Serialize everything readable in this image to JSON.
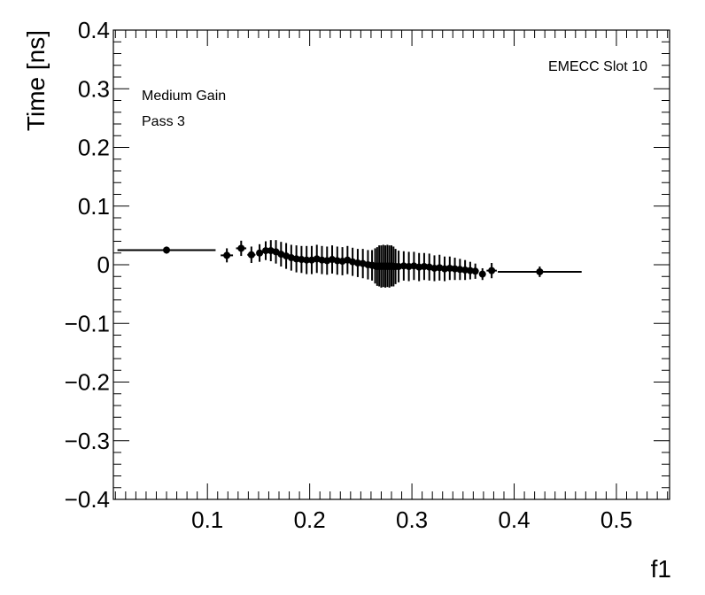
{
  "chart_data": {
    "type": "scatter",
    "xlabel": "f1",
    "ylabel": "Time [ns]",
    "xlim": [
      0.008,
      0.552
    ],
    "ylim": [
      -0.4,
      0.4
    ],
    "x_ticks": [
      0.1,
      0.2,
      0.3,
      0.4,
      0.5
    ],
    "x_tick_labels": [
      "0.1",
      "0.2",
      "0.3",
      "0.4",
      "0.5"
    ],
    "y_ticks": [
      0.4,
      0.3,
      0.2,
      0.1,
      0,
      -0.1,
      -0.2,
      -0.3,
      -0.4
    ],
    "y_tick_labels": [
      "0.4",
      "0.3",
      "0.2",
      "0.1",
      "0",
      "−0.1",
      "−0.2",
      "−0.3",
      "−0.4"
    ],
    "annotations": {
      "top_right": "EMECC Slot 10",
      "line1": "Medium Gain",
      "line2": "Pass 3"
    },
    "grid": false,
    "marker_color": "#000000",
    "series": [
      {
        "points": [
          {
            "x": 0.06,
            "y": 0.025,
            "xerr": 0.048,
            "yerr": 0.006
          },
          {
            "x": 0.119,
            "y": 0.016,
            "xerr": 0.006,
            "yerr": 0.012
          },
          {
            "x": 0.133,
            "y": 0.028,
            "xerr": 0.005,
            "yerr": 0.013
          },
          {
            "x": 0.143,
            "y": 0.017,
            "xerr": 0.004,
            "yerr": 0.014
          },
          {
            "x": 0.151,
            "y": 0.02,
            "xerr": 0.003,
            "yerr": 0.015
          },
          {
            "x": 0.157,
            "y": 0.024,
            "xerr": 0.003,
            "yerr": 0.016
          },
          {
            "x": 0.162,
            "y": 0.024,
            "xerr": 0.002,
            "yerr": 0.018
          },
          {
            "x": 0.167,
            "y": 0.022,
            "xerr": 0.002,
            "yerr": 0.02
          },
          {
            "x": 0.172,
            "y": 0.018,
            "xerr": 0.002,
            "yerr": 0.021
          },
          {
            "x": 0.177,
            "y": 0.015,
            "xerr": 0.002,
            "yerr": 0.022
          },
          {
            "x": 0.182,
            "y": 0.012,
            "xerr": 0.002,
            "yerr": 0.022
          },
          {
            "x": 0.187,
            "y": 0.01,
            "xerr": 0.002,
            "yerr": 0.023
          },
          {
            "x": 0.192,
            "y": 0.009,
            "xerr": 0.002,
            "yerr": 0.023
          },
          {
            "x": 0.197,
            "y": 0.008,
            "xerr": 0.002,
            "yerr": 0.024
          },
          {
            "x": 0.202,
            "y": 0.008,
            "xerr": 0.002,
            "yerr": 0.024
          },
          {
            "x": 0.207,
            "y": 0.01,
            "xerr": 0.002,
            "yerr": 0.024
          },
          {
            "x": 0.212,
            "y": 0.008,
            "xerr": 0.002,
            "yerr": 0.024
          },
          {
            "x": 0.217,
            "y": 0.007,
            "xerr": 0.002,
            "yerr": 0.024
          },
          {
            "x": 0.222,
            "y": 0.009,
            "xerr": 0.002,
            "yerr": 0.024
          },
          {
            "x": 0.227,
            "y": 0.007,
            "xerr": 0.002,
            "yerr": 0.024
          },
          {
            "x": 0.232,
            "y": 0.006,
            "xerr": 0.002,
            "yerr": 0.024
          },
          {
            "x": 0.237,
            "y": 0.008,
            "xerr": 0.002,
            "yerr": 0.024
          },
          {
            "x": 0.242,
            "y": 0.005,
            "xerr": 0.002,
            "yerr": 0.024
          },
          {
            "x": 0.247,
            "y": 0.003,
            "xerr": 0.002,
            "yerr": 0.024
          },
          {
            "x": 0.252,
            "y": 0.002,
            "xerr": 0.002,
            "yerr": 0.025
          },
          {
            "x": 0.257,
            "y": 0.0,
            "xerr": 0.002,
            "yerr": 0.025
          },
          {
            "x": 0.261,
            "y": -0.001,
            "xerr": 0.001,
            "yerr": 0.026
          },
          {
            "x": 0.264,
            "y": -0.002,
            "xerr": 0.001,
            "yerr": 0.03
          },
          {
            "x": 0.266,
            "y": -0.003,
            "xerr": 0.001,
            "yerr": 0.033
          },
          {
            "x": 0.268,
            "y": -0.002,
            "xerr": 0.001,
            "yerr": 0.035
          },
          {
            "x": 0.27,
            "y": -0.003,
            "xerr": 0.001,
            "yerr": 0.036
          },
          {
            "x": 0.272,
            "y": -0.002,
            "xerr": 0.001,
            "yerr": 0.036
          },
          {
            "x": 0.274,
            "y": -0.003,
            "xerr": 0.001,
            "yerr": 0.036
          },
          {
            "x": 0.276,
            "y": -0.002,
            "xerr": 0.001,
            "yerr": 0.036
          },
          {
            "x": 0.278,
            "y": -0.003,
            "xerr": 0.001,
            "yerr": 0.036
          },
          {
            "x": 0.28,
            "y": -0.002,
            "xerr": 0.001,
            "yerr": 0.035
          },
          {
            "x": 0.282,
            "y": -0.003,
            "xerr": 0.001,
            "yerr": 0.034
          },
          {
            "x": 0.284,
            "y": -0.003,
            "xerr": 0.001,
            "yerr": 0.03
          },
          {
            "x": 0.287,
            "y": -0.003,
            "xerr": 0.002,
            "yerr": 0.027
          },
          {
            "x": 0.292,
            "y": -0.002,
            "xerr": 0.002,
            "yerr": 0.025
          },
          {
            "x": 0.297,
            "y": -0.003,
            "xerr": 0.002,
            "yerr": 0.025
          },
          {
            "x": 0.302,
            "y": -0.002,
            "xerr": 0.002,
            "yerr": 0.024
          },
          {
            "x": 0.307,
            "y": -0.004,
            "xerr": 0.002,
            "yerr": 0.024
          },
          {
            "x": 0.312,
            "y": -0.003,
            "xerr": 0.002,
            "yerr": 0.023
          },
          {
            "x": 0.317,
            "y": -0.004,
            "xerr": 0.002,
            "yerr": 0.023
          },
          {
            "x": 0.322,
            "y": -0.006,
            "xerr": 0.002,
            "yerr": 0.022
          },
          {
            "x": 0.327,
            "y": -0.005,
            "xerr": 0.002,
            "yerr": 0.022
          },
          {
            "x": 0.332,
            "y": -0.007,
            "xerr": 0.002,
            "yerr": 0.021
          },
          {
            "x": 0.337,
            "y": -0.006,
            "xerr": 0.002,
            "yerr": 0.02
          },
          {
            "x": 0.342,
            "y": -0.007,
            "xerr": 0.002,
            "yerr": 0.019
          },
          {
            "x": 0.347,
            "y": -0.008,
            "xerr": 0.002,
            "yerr": 0.018
          },
          {
            "x": 0.352,
            "y": -0.009,
            "xerr": 0.002,
            "yerr": 0.017
          },
          {
            "x": 0.357,
            "y": -0.01,
            "xerr": 0.002,
            "yerr": 0.015
          },
          {
            "x": 0.362,
            "y": -0.011,
            "xerr": 0.002,
            "yerr": 0.013
          },
          {
            "x": 0.369,
            "y": -0.016,
            "xerr": 0.003,
            "yerr": 0.01
          },
          {
            "x": 0.378,
            "y": -0.01,
            "xerr": 0.005,
            "yerr": 0.013
          },
          {
            "x": 0.425,
            "y": -0.012,
            "xerr": 0.041,
            "yerr": 0.009
          }
        ]
      }
    ]
  }
}
